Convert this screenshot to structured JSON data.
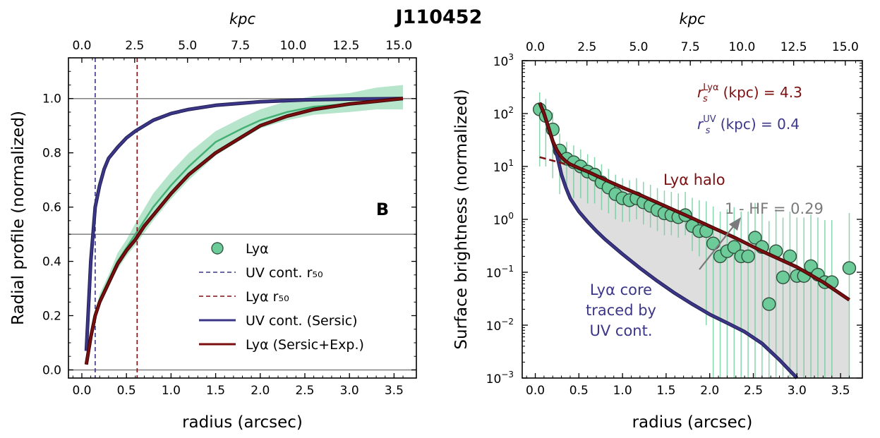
{
  "title": "J110452",
  "colors": {
    "uv": "#3b3687",
    "lya": "#7b0f10",
    "green_point": "#6ccb98",
    "green_band": "#a4dfbf",
    "green_line": "#44b073",
    "gray_fill": "#dedede",
    "hf_arrow": "#7a7a7a"
  },
  "chart_data": [
    {
      "panel": "left",
      "type": "line",
      "title": "",
      "panel_label": "B",
      "xlabel": "radius (arcsec)",
      "ylabel": "Radial profile (normalized)",
      "top_xlabel": "kpc",
      "xlim": [
        -0.15,
        3.75
      ],
      "ylim": [
        -0.03,
        1.15
      ],
      "xticks": [
        0.0,
        0.5,
        1.0,
        1.5,
        2.0,
        2.5,
        3.0,
        3.5
      ],
      "xtick_labels": [
        "0.0",
        "0.5",
        "1.0",
        "1.5",
        "2.0",
        "2.5",
        "3.0",
        "3.5"
      ],
      "yticks": [
        0.0,
        0.2,
        0.4,
        0.6,
        0.8,
        1.0
      ],
      "ytick_labels": [
        "0.0",
        "0.2",
        "0.4",
        "0.6",
        "0.8",
        "1.0"
      ],
      "top_ticks": [
        0.0,
        2.5,
        5.0,
        7.5,
        10.0,
        12.5,
        15.0
      ],
      "top_tick_labels": [
        "0.0",
        "2.5",
        "5.0",
        "7.5",
        "10.0",
        "12.5",
        "15.0"
      ],
      "kpc_per_arcsec": 4.22,
      "hlines": [
        0.0,
        0.5,
        1.0
      ],
      "vlines": [
        {
          "name": "UV cont. r50",
          "x": 0.15
        },
        {
          "name": "Lyα r50",
          "x": 0.62
        }
      ],
      "series": [
        {
          "name": "UV cont. (Sersic)",
          "style": "line",
          "x": [
            0.05,
            0.1,
            0.15,
            0.2,
            0.25,
            0.3,
            0.4,
            0.5,
            0.6,
            0.7,
            0.8,
            1.0,
            1.2,
            1.5,
            2.0,
            2.5,
            3.0,
            3.6
          ],
          "y": [
            0.07,
            0.4,
            0.6,
            0.68,
            0.74,
            0.78,
            0.82,
            0.855,
            0.88,
            0.9,
            0.92,
            0.945,
            0.96,
            0.975,
            0.988,
            0.995,
            0.998,
            1.0
          ]
        },
        {
          "name": "Lyα (Sersic+Exp.)",
          "style": "line",
          "x": [
            0.05,
            0.1,
            0.15,
            0.2,
            0.3,
            0.4,
            0.5,
            0.6,
            0.7,
            0.8,
            1.0,
            1.2,
            1.5,
            1.8,
            2.0,
            2.3,
            2.6,
            3.0,
            3.3,
            3.6
          ],
          "y": [
            0.02,
            0.12,
            0.2,
            0.25,
            0.32,
            0.39,
            0.44,
            0.48,
            0.53,
            0.57,
            0.65,
            0.72,
            0.8,
            0.86,
            0.9,
            0.935,
            0.96,
            0.98,
            0.99,
            1.0
          ]
        },
        {
          "name": "Lyα",
          "style": "band",
          "x": [
            0.05,
            0.1,
            0.2,
            0.3,
            0.4,
            0.5,
            0.6,
            0.8,
            1.0,
            1.2,
            1.5,
            1.8,
            2.0,
            2.3,
            2.6,
            3.0,
            3.3,
            3.6
          ],
          "y": [
            0.02,
            0.13,
            0.26,
            0.33,
            0.4,
            0.45,
            0.5,
            0.6,
            0.68,
            0.75,
            0.84,
            0.89,
            0.92,
            0.95,
            0.97,
            0.98,
            0.99,
            1.0
          ],
          "y_low": [
            0.02,
            0.12,
            0.24,
            0.31,
            0.37,
            0.42,
            0.46,
            0.55,
            0.63,
            0.7,
            0.79,
            0.85,
            0.89,
            0.92,
            0.94,
            0.95,
            0.96,
            0.96
          ],
          "y_high": [
            0.02,
            0.14,
            0.28,
            0.35,
            0.43,
            0.48,
            0.54,
            0.65,
            0.73,
            0.8,
            0.88,
            0.93,
            0.96,
            0.99,
            1.01,
            1.02,
            1.04,
            1.05
          ]
        }
      ],
      "legend": [
        {
          "label": "Lyα",
          "kind": "marker"
        },
        {
          "label": "UV cont. r₅₀",
          "kind": "uv-dash"
        },
        {
          "label": "Lyα r₅₀",
          "kind": "lya-dash"
        },
        {
          "label": "UV cont. (Sersic)",
          "kind": "uv-line"
        },
        {
          "label": "Lyα (Sersic+Exp.)",
          "kind": "lya-line"
        }
      ],
      "legend_position": "lower-right"
    },
    {
      "panel": "right",
      "type": "scatter",
      "title": "",
      "xlabel": "radius (arcsec)",
      "ylabel": "Surface brightness (normalized)",
      "top_xlabel": "kpc",
      "yscale": "log",
      "xlim": [
        -0.15,
        3.75
      ],
      "ylim": [
        0.001,
        1000
      ],
      "xticks": [
        0.0,
        0.5,
        1.0,
        1.5,
        2.0,
        2.5,
        3.0,
        3.5
      ],
      "xtick_labels": [
        "0.0",
        "0.5",
        "1.0",
        "1.5",
        "2.0",
        "2.5",
        "3.0",
        "3.5"
      ],
      "ytick_exponents": [
        -3,
        -2,
        -1,
        0,
        1,
        2,
        3
      ],
      "top_ticks": [
        0.0,
        2.5,
        5.0,
        7.5,
        10.0,
        12.5,
        15.0
      ],
      "top_tick_labels": [
        "0.0",
        "2.5",
        "5.0",
        "7.5",
        "10.0",
        "12.5",
        "15.0"
      ],
      "kpc_per_arcsec": 4.22,
      "points": {
        "name": "Lyα",
        "x": [
          0.05,
          0.12,
          0.2,
          0.28,
          0.36,
          0.44,
          0.52,
          0.6,
          0.68,
          0.76,
          0.84,
          0.92,
          1.0,
          1.08,
          1.16,
          1.24,
          1.32,
          1.4,
          1.48,
          1.56,
          1.64,
          1.72,
          1.8,
          1.88,
          1.96,
          2.04,
          2.12,
          2.2,
          2.28,
          2.36,
          2.44,
          2.52,
          2.6,
          2.68,
          2.76,
          2.84,
          2.92,
          3.0,
          3.08,
          3.16,
          3.24,
          3.32,
          3.4,
          3.6
        ],
        "y": [
          120,
          90,
          50,
          20,
          14,
          12,
          10,
          8,
          7,
          5,
          4,
          3,
          2.5,
          2.3,
          2.5,
          2.1,
          1.8,
          1.5,
          1.3,
          1.2,
          1.1,
          1.2,
          0.75,
          0.6,
          0.6,
          0.35,
          0.2,
          0.25,
          0.3,
          0.2,
          0.2,
          0.45,
          0.3,
          0.025,
          0.25,
          0.08,
          0.2,
          0.085,
          0.085,
          0.13,
          0.09,
          0.065,
          0.065,
          0.12
        ],
        "err_low": [
          110,
          80,
          44,
          17,
          11,
          9.5,
          7.5,
          6,
          5,
          3.5,
          2.7,
          2,
          1.6,
          1.4,
          1.5,
          1.3,
          1.1,
          0.9,
          0.8,
          0.7,
          0.65,
          0.7,
          0.5,
          0.4,
          0.59,
          0.349,
          0.199,
          0.249,
          0.299,
          0.199,
          0.199,
          0.449,
          0.299,
          0.0249,
          0.249,
          0.0799,
          0.199,
          0.0849,
          0.0849,
          0.1299,
          0.0899,
          0.0649,
          0.0649,
          0.1199
        ],
        "err_high": [
          130,
          100,
          55,
          22,
          15,
          13,
          11,
          9,
          8,
          6,
          5,
          4,
          3.5,
          3.2,
          3.5,
          3,
          2.7,
          2.4,
          2.2,
          2.1,
          2,
          2.1,
          1.8,
          1.7,
          1.6,
          1.4,
          1.2,
          1.3,
          1.4,
          1.2,
          1.2,
          1.6,
          1.4,
          0.9,
          1.3,
          1,
          1.2,
          1,
          1,
          1.1,
          1,
          0.9,
          0.9,
          1.2
        ]
      },
      "series": [
        {
          "name": "Lyα (Sersic+Exp.)",
          "style": "line",
          "x": [
            0.05,
            0.1,
            0.15,
            0.2,
            0.25,
            0.3,
            0.35,
            0.4,
            0.5,
            0.6,
            0.8,
            1.0,
            1.2,
            1.5,
            1.8,
            2.0,
            2.3,
            2.6,
            3.0,
            3.3,
            3.6
          ],
          "y": [
            160,
            100,
            55,
            30,
            20,
            15,
            12.5,
            11,
            9.3,
            8,
            5.6,
            4,
            2.9,
            1.75,
            1.05,
            0.74,
            0.44,
            0.25,
            0.125,
            0.065,
            0.03
          ]
        },
        {
          "name": "Exp. halo (extrapolated)",
          "style": "dashed",
          "x": [
            0.05,
            0.4
          ],
          "y": [
            15,
            10.5
          ]
        },
        {
          "name": "UV cont. (Sersic)",
          "style": "line",
          "x": [
            0.05,
            0.1,
            0.15,
            0.2,
            0.25,
            0.3,
            0.35,
            0.4,
            0.5,
            0.6,
            0.7,
            0.8,
            1.0,
            1.2,
            1.4,
            1.6,
            1.8,
            2.0,
            2.2,
            2.4,
            2.6,
            2.8,
            3.0
          ],
          "y": [
            160,
            100,
            55,
            30,
            16,
            7,
            4,
            2.5,
            1.4,
            0.9,
            0.6,
            0.42,
            0.22,
            0.12,
            0.068,
            0.04,
            0.025,
            0.016,
            0.011,
            0.0075,
            0.0045,
            0.0022,
            0.001
          ]
        }
      ],
      "annotations": {
        "halo_label": "Lyα halo",
        "core_label": [
          "Lyα core",
          "traced by",
          "UV cont."
        ],
        "hf_label": "1 - HF = 0.29",
        "rs_lya": {
          "symbol": "r",
          "sub": "s",
          "sup": "Lyα",
          "text": " (kpc) = 4.3"
        },
        "rs_uv": {
          "symbol": "r",
          "sub": "s",
          "sup": "UV",
          "text": " (kpc) = 0.4"
        }
      }
    }
  ]
}
